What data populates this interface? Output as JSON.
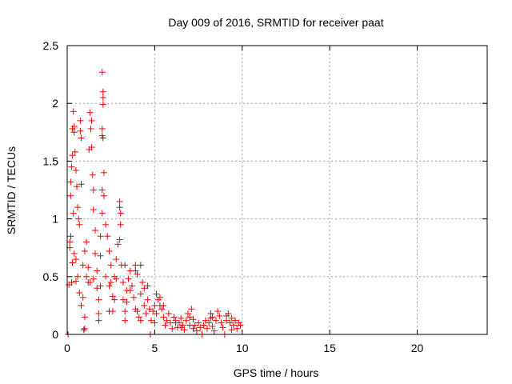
{
  "chart_data": {
    "type": "scatter",
    "title": "Day 009 of 2016, SRMTID for receiver paat",
    "xlabel": "GPS time / hours",
    "ylabel": "SRMTID / TECUs",
    "xlim": [
      0,
      24
    ],
    "ylim": [
      0,
      2.5
    ],
    "xticks": [
      0,
      5,
      10,
      15,
      20
    ],
    "xtick_labels": [
      "0",
      "5",
      "10",
      "15",
      "20"
    ],
    "yticks": [
      0,
      0.5,
      1,
      1.5,
      2,
      2.5
    ],
    "ytick_labels": [
      "0",
      "0.5",
      "1",
      "1.5",
      "2",
      "2.5"
    ],
    "grid": true,
    "series": [
      {
        "name": "gray",
        "color": "#404040",
        "points": [
          [
            0.2,
            0.85
          ],
          [
            0.4,
            1.75
          ],
          [
            0.8,
            1.3
          ],
          [
            1.2,
            0.45
          ],
          [
            1.9,
            0.68
          ],
          [
            2.05,
            1.7
          ],
          [
            2.4,
            0.2
          ],
          [
            3.0,
            1.1
          ],
          [
            3.3,
            0.6
          ],
          [
            3.9,
            0.55
          ],
          [
            4.2,
            0.6
          ],
          [
            4.6,
            0.42
          ],
          [
            5.3,
            0.25
          ],
          [
            6.2,
            0.1
          ],
          [
            7.0,
            0.08
          ],
          [
            8.2,
            0.18
          ],
          [
            9.1,
            0.16
          ],
          [
            0.95,
            0.04
          ],
          [
            1.8,
            0.12
          ],
          [
            2.7,
            0.3
          ]
        ]
      },
      {
        "name": "red",
        "color": "#ff0000",
        "points": [
          [
            0.05,
            0.0
          ],
          [
            0.1,
            0.43
          ],
          [
            0.15,
            0.8
          ],
          [
            0.2,
            1.2
          ],
          [
            0.2,
            1.32
          ],
          [
            0.25,
            1.45
          ],
          [
            0.3,
            1.55
          ],
          [
            0.3,
            1.78
          ],
          [
            0.35,
            1.93
          ],
          [
            0.4,
            1.8
          ],
          [
            0.45,
            1.58
          ],
          [
            0.35,
            1.05
          ],
          [
            0.4,
            0.7
          ],
          [
            0.3,
            0.62
          ],
          [
            0.25,
            0.45
          ],
          [
            0.5,
            1.42
          ],
          [
            0.55,
            1.28
          ],
          [
            0.6,
            1.1
          ],
          [
            0.65,
            1.0
          ],
          [
            0.7,
            0.95
          ],
          [
            0.75,
            1.85
          ],
          [
            0.75,
            1.76
          ],
          [
            0.8,
            1.7
          ],
          [
            0.5,
            0.65
          ],
          [
            0.6,
            0.5
          ],
          [
            0.7,
            0.36
          ],
          [
            0.8,
            0.25
          ],
          [
            0.9,
            0.32
          ],
          [
            1.0,
            0.15
          ],
          [
            1.0,
            0.05
          ],
          [
            0.9,
            0.6
          ],
          [
            1.0,
            0.72
          ],
          [
            1.1,
            0.8
          ],
          [
            1.2,
            0.58
          ],
          [
            1.3,
            0.45
          ],
          [
            1.25,
            1.6
          ],
          [
            1.3,
            1.92
          ],
          [
            1.35,
            1.78
          ],
          [
            1.4,
            1.85
          ],
          [
            1.4,
            1.62
          ],
          [
            1.45,
            1.38
          ],
          [
            1.5,
            1.25
          ],
          [
            1.5,
            1.08
          ],
          [
            1.6,
            0.9
          ],
          [
            1.6,
            0.7
          ],
          [
            1.7,
            0.55
          ],
          [
            1.7,
            0.4
          ],
          [
            1.8,
            0.3
          ],
          [
            1.8,
            0.18
          ],
          [
            1.9,
            0.42
          ],
          [
            1.9,
            0.85
          ],
          [
            2.0,
            1.05
          ],
          [
            2.0,
            1.25
          ],
          [
            2.0,
            2.27
          ],
          [
            2.05,
            2.1
          ],
          [
            2.05,
            2.05
          ],
          [
            2.05,
            1.99
          ],
          [
            2.0,
            1.78
          ],
          [
            2.0,
            1.72
          ],
          [
            2.1,
            1.4
          ],
          [
            2.1,
            1.2
          ],
          [
            2.2,
            0.95
          ],
          [
            2.3,
            0.85
          ],
          [
            2.4,
            0.72
          ],
          [
            2.5,
            0.6
          ],
          [
            2.5,
            0.45
          ],
          [
            2.6,
            0.33
          ],
          [
            2.6,
            0.2
          ],
          [
            2.7,
            0.5
          ],
          [
            2.8,
            0.65
          ],
          [
            2.9,
            0.78
          ],
          [
            3.0,
            1.15
          ],
          [
            3.05,
            1.05
          ],
          [
            3.05,
            0.95
          ],
          [
            3.0,
            0.82
          ],
          [
            3.1,
            0.6
          ],
          [
            3.2,
            0.45
          ],
          [
            3.2,
            0.3
          ],
          [
            3.3,
            0.2
          ],
          [
            3.3,
            0.12
          ],
          [
            3.4,
            0.38
          ],
          [
            3.5,
            0.48
          ],
          [
            3.6,
            0.55
          ],
          [
            3.7,
            0.42
          ],
          [
            3.8,
            0.32
          ],
          [
            3.9,
            0.6
          ],
          [
            4.0,
            0.52
          ],
          [
            4.0,
            0.2
          ],
          [
            4.1,
            0.15
          ],
          [
            4.2,
            0.35
          ],
          [
            4.3,
            0.45
          ],
          [
            4.4,
            0.25
          ],
          [
            4.5,
            0.18
          ],
          [
            4.6,
            0.3
          ],
          [
            4.7,
            0.22
          ],
          [
            4.75,
            0.0
          ],
          [
            4.8,
            0.12
          ],
          [
            4.9,
            0.2
          ],
          [
            5.0,
            0.1
          ],
          [
            5.0,
            0.25
          ],
          [
            5.1,
            0.18
          ],
          [
            5.2,
            0.3
          ],
          [
            5.3,
            0.32
          ],
          [
            5.4,
            0.22
          ],
          [
            5.5,
            0.15
          ],
          [
            5.6,
            0.08
          ],
          [
            5.7,
            0.12
          ],
          [
            5.8,
            0.18
          ],
          [
            5.9,
            0.1
          ],
          [
            6.0,
            0.05
          ],
          [
            6.1,
            0.15
          ],
          [
            6.2,
            0.12
          ],
          [
            6.3,
            0.06
          ],
          [
            6.4,
            0.1
          ],
          [
            6.5,
            0.14
          ],
          [
            6.6,
            0.08
          ],
          [
            6.7,
            0.04
          ],
          [
            6.8,
            0.12
          ],
          [
            6.9,
            0.18
          ],
          [
            7.0,
            0.15
          ],
          [
            7.1,
            0.22
          ],
          [
            7.2,
            0.13
          ],
          [
            7.3,
            0.08
          ],
          [
            7.4,
            0.03
          ],
          [
            7.5,
            0.1
          ],
          [
            7.6,
            0.06
          ],
          [
            7.7,
            0.0
          ],
          [
            7.8,
            0.08
          ],
          [
            7.9,
            0.12
          ],
          [
            8.0,
            0.05
          ],
          [
            8.1,
            0.1
          ],
          [
            8.2,
            0.14
          ],
          [
            8.3,
            0.07
          ],
          [
            8.4,
            0.03
          ],
          [
            8.5,
            0.12
          ],
          [
            8.6,
            0.2
          ],
          [
            8.7,
            0.16
          ],
          [
            8.8,
            0.1
          ],
          [
            8.9,
            0.06
          ],
          [
            9.0,
            0.0
          ],
          [
            9.1,
            0.12
          ],
          [
            9.2,
            0.18
          ],
          [
            9.3,
            0.1
          ],
          [
            9.4,
            0.14
          ],
          [
            9.5,
            0.08
          ],
          [
            9.6,
            0.12
          ],
          [
            9.7,
            0.05
          ],
          [
            9.8,
            0.1
          ],
          [
            9.9,
            0.08
          ],
          [
            0.15,
            0.75
          ],
          [
            0.5,
            0.46
          ],
          [
            1.1,
            0.5
          ],
          [
            1.5,
            0.48
          ],
          [
            2.2,
            0.5
          ],
          [
            2.4,
            0.42
          ],
          [
            2.8,
            0.48
          ],
          [
            3.4,
            0.28
          ],
          [
            3.6,
            0.38
          ],
          [
            3.9,
            0.22
          ],
          [
            4.2,
            0.12
          ],
          [
            4.4,
            0.4
          ],
          [
            5.1,
            0.35
          ],
          [
            5.5,
            0.25
          ],
          [
            6.5,
            0.06
          ],
          [
            7.2,
            0.05
          ],
          [
            8.3,
            0.15
          ],
          [
            9.4,
            0.04
          ]
        ]
      }
    ]
  }
}
